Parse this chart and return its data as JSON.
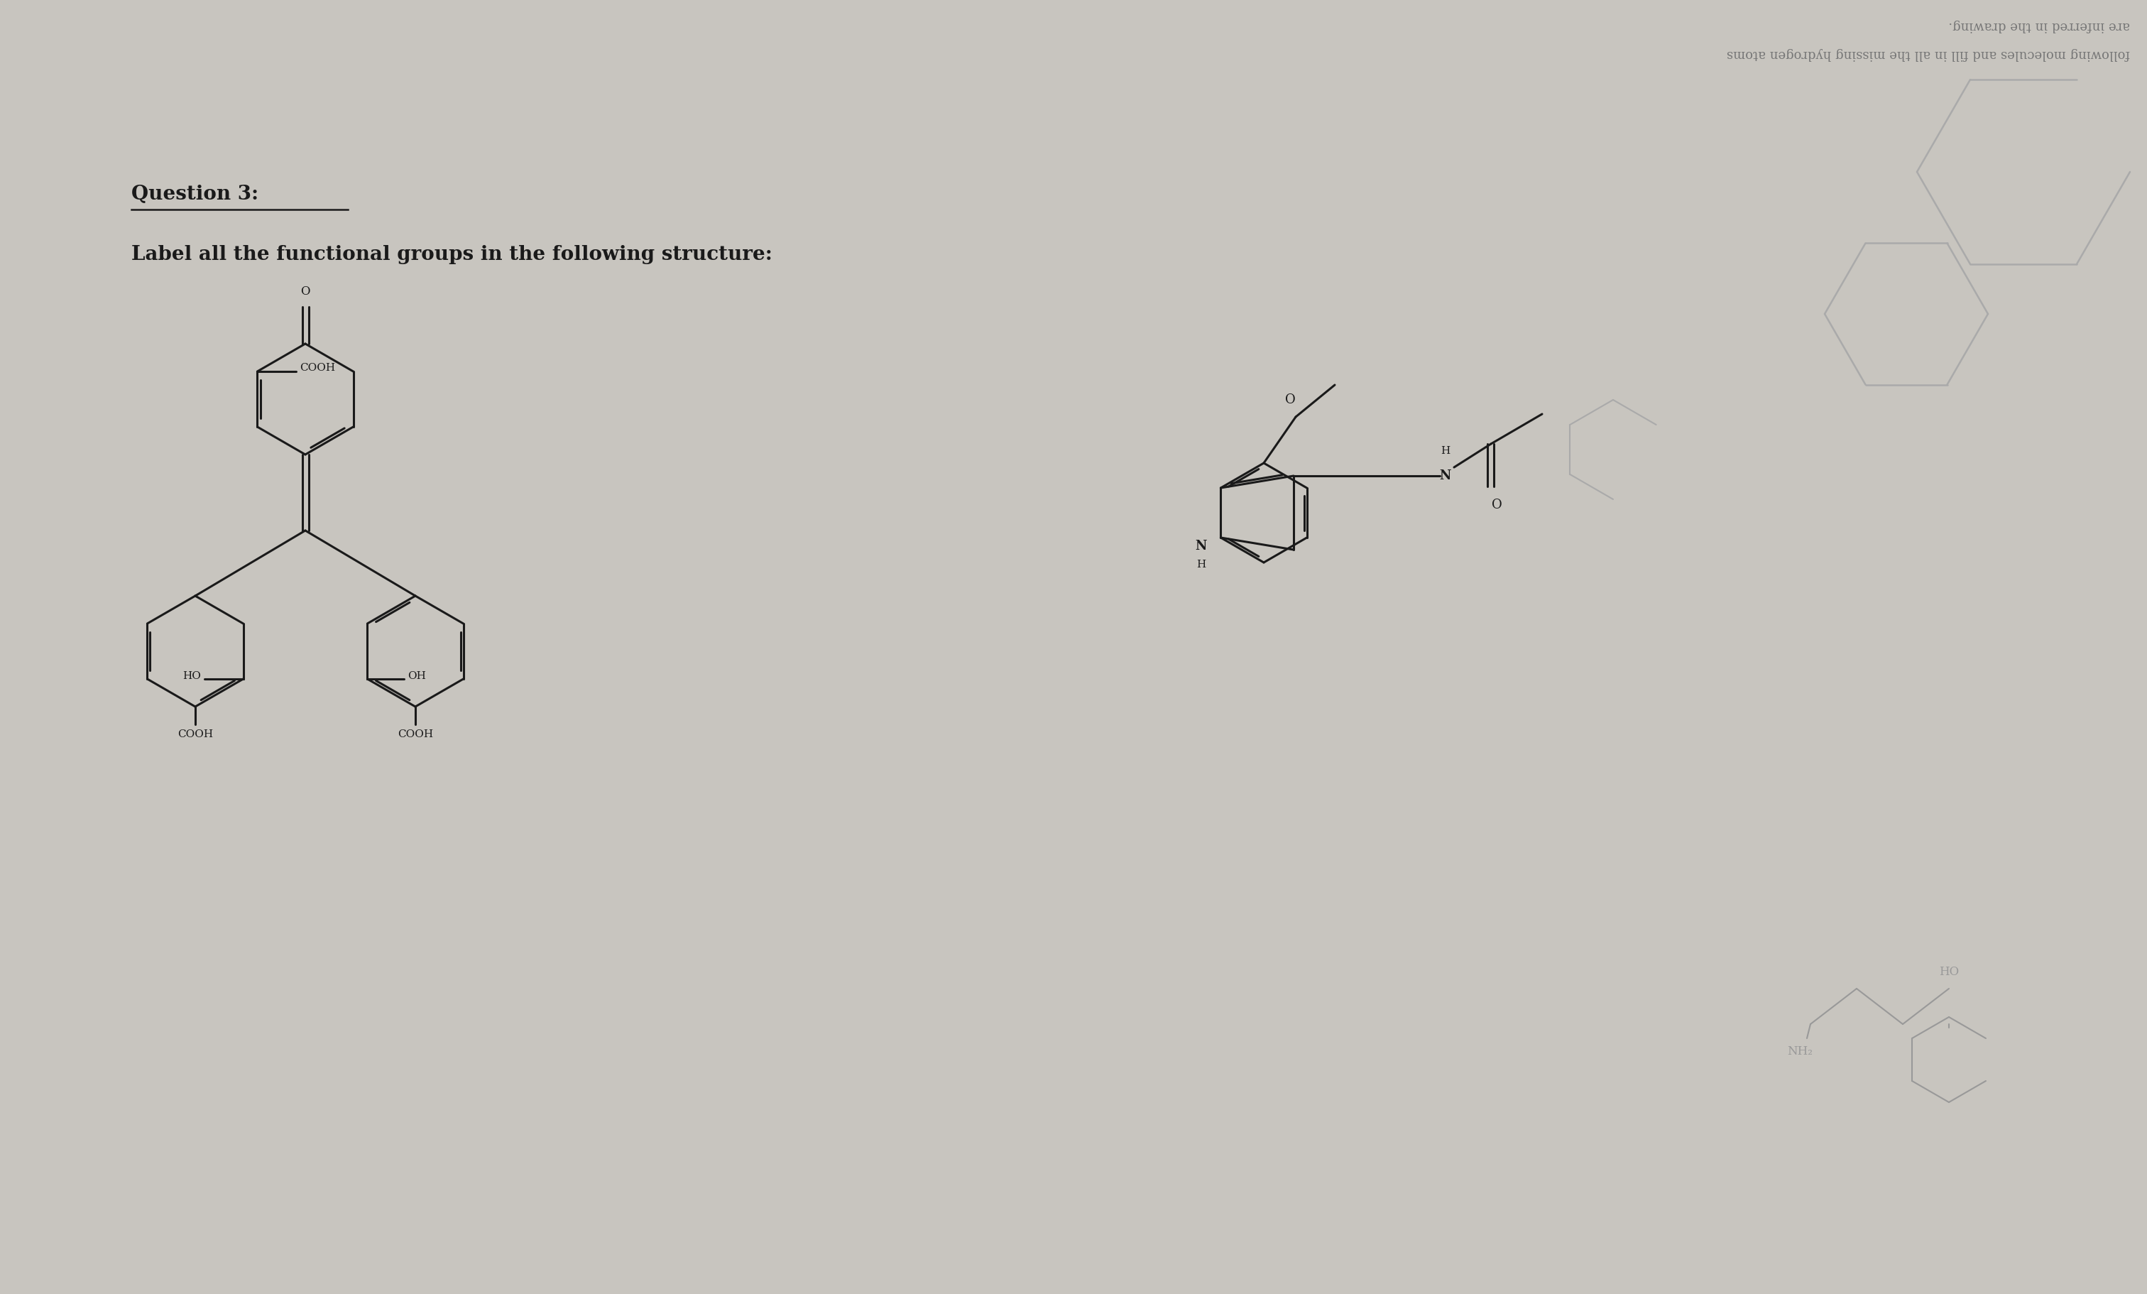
{
  "background_color": "#c8c5bf",
  "title_text": "Question 3:",
  "subtitle_text": "Label all the functional groups in the following structure:",
  "line_color": "#1a1a1a",
  "text_color": "#1a1a1a",
  "mirrored_text_color": "#777777",
  "mirrored_text1": "are inferred in the drawing.",
  "mirrored_text2": "following molecules and fill in all the missing hydrogen atoms",
  "deco_color": "#aaaaaa"
}
